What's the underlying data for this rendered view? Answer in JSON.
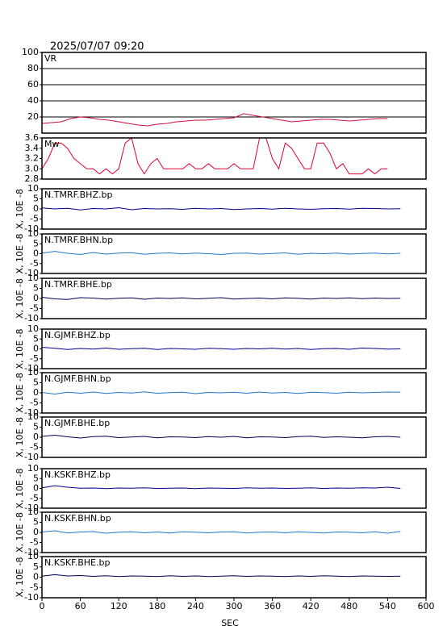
{
  "chart_data": [
    {
      "type": "line",
      "title": "2025/07/07 09:20",
      "label": "VR",
      "color": "#d0103a",
      "grid": true,
      "xlim": [
        0,
        600
      ],
      "ylim": [
        0,
        100
      ],
      "yticks": [
        20,
        40,
        60,
        80,
        100
      ],
      "x": [
        0,
        15,
        30,
        45,
        60,
        75,
        90,
        105,
        120,
        135,
        150,
        165,
        180,
        195,
        210,
        225,
        240,
        255,
        270,
        285,
        300,
        315,
        330,
        345,
        360,
        375,
        390,
        405,
        420,
        435,
        450,
        465,
        480,
        495,
        510,
        525,
        540
      ],
      "values": [
        12,
        13,
        14,
        18,
        20,
        19,
        17,
        16,
        14,
        12,
        10,
        9,
        11,
        12,
        14,
        15,
        16,
        16,
        17,
        18,
        19,
        24,
        22,
        20,
        18,
        16,
        14,
        15,
        16,
        17,
        17,
        16,
        15,
        16,
        17,
        18,
        18
      ]
    },
    {
      "type": "line",
      "label": "Mw",
      "color": "#e0002f",
      "xlim": [
        0,
        600
      ],
      "ylim": [
        2.8,
        3.6
      ],
      "yticks": [
        {
          "value": 2.8,
          "label": "2.8"
        },
        {
          "value": 3.0,
          "label": "3.0"
        },
        {
          "value": 3.2,
          "label": "3.2"
        },
        {
          "value": 3.4,
          "label": "3.4"
        },
        {
          "value": 3.6,
          "label": "3.6"
        }
      ],
      "x": [
        0,
        10,
        20,
        30,
        40,
        50,
        60,
        70,
        80,
        90,
        100,
        110,
        120,
        130,
        140,
        150,
        160,
        170,
        180,
        190,
        200,
        210,
        220,
        230,
        240,
        250,
        260,
        270,
        280,
        290,
        300,
        310,
        320,
        330,
        340,
        350,
        360,
        370,
        380,
        390,
        400,
        410,
        420,
        430,
        440,
        450,
        460,
        470,
        480,
        490,
        500,
        510,
        520,
        530,
        540
      ],
      "values": [
        3.0,
        3.2,
        3.5,
        3.5,
        3.4,
        3.2,
        3.1,
        3.0,
        3.0,
        2.9,
        3.0,
        2.9,
        3.0,
        3.5,
        3.6,
        3.1,
        2.9,
        3.1,
        3.2,
        3.0,
        3.0,
        3.0,
        3.0,
        3.1,
        3.0,
        3.0,
        3.1,
        3.0,
        3.0,
        3.0,
        3.1,
        3.0,
        3.0,
        3.0,
        3.6,
        3.6,
        3.2,
        3.0,
        3.5,
        3.4,
        3.2,
        3.0,
        3.0,
        3.5,
        3.5,
        3.3,
        3.0,
        3.1,
        2.9,
        2.9,
        2.9,
        3.0,
        2.9,
        3.0,
        3.0
      ]
    },
    {
      "type": "line",
      "label": "N.TMRF.BHZ.bp",
      "ylabel": "X, 10E -8",
      "color": "#00008b",
      "xlim": [
        0,
        600
      ],
      "ylim": [
        -10,
        10
      ],
      "yticks": [
        -10,
        -5,
        0,
        5,
        10
      ],
      "x": [
        0,
        20,
        40,
        60,
        80,
        100,
        120,
        140,
        160,
        180,
        200,
        220,
        240,
        260,
        280,
        300,
        320,
        340,
        360,
        380,
        400,
        420,
        440,
        460,
        480,
        500,
        520,
        540,
        560
      ],
      "values": [
        0.5,
        0,
        0.3,
        -0.5,
        0.2,
        0,
        0.6,
        -0.4,
        0.2,
        0,
        0.1,
        -0.2,
        0.3,
        0,
        0.2,
        -0.3,
        0,
        0.2,
        -0.1,
        0.3,
        0,
        -0.2,
        0.1,
        0.2,
        -0.1,
        0.3,
        0.2,
        0,
        0.1
      ]
    },
    {
      "type": "line",
      "label": "N.TMRF.BHN.bp",
      "ylabel": "X, 10E -8",
      "color": "#1e78c8",
      "xlim": [
        0,
        600
      ],
      "ylim": [
        -10,
        10
      ],
      "yticks": [
        -10,
        -5,
        0,
        5,
        10
      ],
      "x": [
        0,
        20,
        40,
        60,
        80,
        100,
        120,
        140,
        160,
        180,
        200,
        220,
        240,
        260,
        280,
        300,
        320,
        340,
        360,
        380,
        400,
        420,
        440,
        460,
        480,
        500,
        520,
        540,
        560
      ],
      "values": [
        0.3,
        1.2,
        0.2,
        -0.4,
        0.6,
        -0.2,
        0.3,
        0.5,
        -0.3,
        0.2,
        0.4,
        -0.1,
        0.3,
        0,
        -0.4,
        0.2,
        0.3,
        -0.2,
        0.1,
        0.4,
        -0.3,
        0.2,
        0,
        0.3,
        -0.2,
        0.1,
        0.3,
        -0.1,
        0.2
      ]
    },
    {
      "type": "line",
      "label": "N.TMRF.BHE.bp",
      "ylabel": "X, 10E -8",
      "color": "#000050",
      "xlim": [
        0,
        600
      ],
      "ylim": [
        -10,
        10
      ],
      "yticks": [
        -10,
        -5,
        0,
        5,
        10
      ],
      "x": [
        0,
        20,
        40,
        60,
        80,
        100,
        120,
        140,
        160,
        180,
        200,
        220,
        240,
        260,
        280,
        300,
        320,
        340,
        360,
        380,
        400,
        420,
        440,
        460,
        480,
        500,
        520,
        540,
        560
      ],
      "values": [
        0.6,
        -0.2,
        -0.5,
        0.4,
        0.2,
        -0.3,
        0.1,
        0.3,
        -0.4,
        0.2,
        0,
        0.3,
        -0.2,
        0.1,
        0.4,
        -0.3,
        0,
        0.2,
        -0.2,
        0.3,
        0.1,
        -0.3,
        0.2,
        0,
        0.3,
        -0.1,
        0.2,
        0,
        0.1
      ]
    },
    {
      "type": "line",
      "label": "N.GJMF.BHZ.bp",
      "ylabel": "X, 10E -8",
      "color": "#00008b",
      "xlim": [
        0,
        600
      ],
      "ylim": [
        -10,
        10
      ],
      "yticks": [
        -10,
        -5,
        0,
        5,
        10
      ],
      "x": [
        0,
        20,
        40,
        60,
        80,
        100,
        120,
        140,
        160,
        180,
        200,
        220,
        240,
        260,
        280,
        300,
        320,
        340,
        360,
        380,
        400,
        420,
        440,
        460,
        480,
        500,
        520,
        540,
        560
      ],
      "values": [
        0.8,
        0.3,
        -0.3,
        0.2,
        -0.1,
        0.4,
        -0.2,
        0.1,
        0.3,
        -0.3,
        0.2,
        0,
        -0.2,
        0.3,
        0.1,
        -0.2,
        0.2,
        0,
        0.3,
        -0.1,
        0.2,
        -0.3,
        0.1,
        0.2,
        -0.2,
        0.4,
        0.2,
        -0.1,
        0
      ]
    },
    {
      "type": "line",
      "label": "N.GJMF.BHN.bp",
      "ylabel": "X, 10E -8",
      "color": "#1e78c8",
      "xlim": [
        0,
        600
      ],
      "ylim": [
        -10,
        10
      ],
      "yticks": [
        -10,
        -5,
        0,
        5,
        10
      ],
      "x": [
        0,
        20,
        40,
        60,
        80,
        100,
        120,
        140,
        160,
        180,
        200,
        220,
        240,
        260,
        280,
        300,
        320,
        340,
        360,
        380,
        400,
        420,
        440,
        460,
        480,
        500,
        520,
        540,
        560
      ],
      "values": [
        0.2,
        -0.6,
        0.3,
        -0.2,
        0.4,
        -0.3,
        0.2,
        -0.1,
        0.5,
        -0.2,
        0.1,
        0.3,
        -0.4,
        0.2,
        0,
        0.3,
        -0.2,
        0.4,
        -0.1,
        0.2,
        -0.3,
        0.3,
        0.1,
        -0.2,
        0.3,
        0,
        0.2,
        0.4,
        0.3
      ]
    },
    {
      "type": "line",
      "label": "N.GJMF.BHE.bp",
      "ylabel": "X, 10E -8",
      "color": "#000050",
      "xlim": [
        0,
        600
      ],
      "ylim": [
        -10,
        10
      ],
      "yticks": [
        -10,
        -5,
        0,
        5,
        10
      ],
      "x": [
        0,
        20,
        40,
        60,
        80,
        100,
        120,
        140,
        160,
        180,
        200,
        220,
        240,
        260,
        280,
        300,
        320,
        340,
        360,
        380,
        400,
        420,
        440,
        460,
        480,
        500,
        520,
        540,
        560
      ],
      "values": [
        0.4,
        1.0,
        0.2,
        -0.4,
        0.3,
        0.5,
        -0.2,
        0.1,
        0.4,
        -0.3,
        0.2,
        0.1,
        -0.2,
        0.3,
        0,
        0.4,
        -0.3,
        0.2,
        0.1,
        -0.2,
        0.3,
        0.5,
        -0.1,
        0.2,
        0,
        -0.3,
        0.2,
        0.4,
        0
      ]
    },
    {
      "type": "line",
      "label": "N.KSKF.BHZ.bp",
      "ylabel": "X, 10E -8",
      "color": "#00008b",
      "xlim": [
        0,
        600
      ],
      "ylim": [
        -10,
        10
      ],
      "yticks": [
        -10,
        -5,
        0,
        5,
        10
      ],
      "x": [
        0,
        20,
        40,
        60,
        80,
        100,
        120,
        140,
        160,
        180,
        200,
        220,
        240,
        260,
        280,
        300,
        320,
        340,
        360,
        380,
        400,
        420,
        440,
        460,
        480,
        500,
        520,
        540,
        560
      ],
      "values": [
        0.3,
        1.4,
        0.6,
        0.1,
        0.2,
        -0.1,
        0.2,
        0.1,
        0.3,
        0,
        0.1,
        0.2,
        -0.1,
        0.2,
        0.1,
        0,
        0.3,
        0.1,
        0.2,
        0,
        0.1,
        0.3,
        0,
        0.2,
        0.1,
        0.3,
        0.2,
        0.6,
        0
      ]
    },
    {
      "type": "line",
      "label": "N.KSKF.BHN.bp",
      "ylabel": "X, 10E -8",
      "color": "#1e78c8",
      "xlim": [
        0,
        600
      ],
      "ylim": [
        -10,
        10
      ],
      "yticks": [
        -10,
        -5,
        0,
        5,
        10
      ],
      "x": [
        0,
        20,
        40,
        60,
        80,
        100,
        120,
        140,
        160,
        180,
        200,
        220,
        240,
        260,
        280,
        300,
        320,
        340,
        360,
        380,
        400,
        420,
        440,
        460,
        480,
        500,
        520,
        540,
        560
      ],
      "values": [
        0.2,
        0.8,
        -0.3,
        0.2,
        0.4,
        -0.4,
        0.1,
        0.3,
        -0.2,
        0.2,
        -0.3,
        0.3,
        0.1,
        -0.2,
        0.2,
        0.3,
        -0.3,
        0.1,
        0.2,
        -0.2,
        0.3,
        0,
        -0.3,
        0.2,
        0.1,
        -0.2,
        0.3,
        -0.4,
        0.5
      ]
    },
    {
      "type": "line",
      "label": "N.KSKF.BHE.bp",
      "ylabel": "X, 10E -8",
      "color": "#000050",
      "xlim": [
        0,
        600
      ],
      "ylim": [
        -10,
        10
      ],
      "yticks": [
        -10,
        -5,
        0,
        5,
        10
      ],
      "xlabel": "SEC",
      "xticks": [
        0,
        60,
        120,
        180,
        240,
        300,
        360,
        420,
        480,
        540,
        600
      ],
      "x": [
        0,
        20,
        40,
        60,
        80,
        100,
        120,
        140,
        160,
        180,
        200,
        220,
        240,
        260,
        280,
        300,
        320,
        340,
        360,
        380,
        400,
        420,
        440,
        460,
        480,
        500,
        520,
        540,
        560
      ],
      "values": [
        0.5,
        1.2,
        0.6,
        0.8,
        0.4,
        0.7,
        0.3,
        0.6,
        0.5,
        0.3,
        0.7,
        0.4,
        0.6,
        0.3,
        0.5,
        0.7,
        0.4,
        0.6,
        0.5,
        0.3,
        0.6,
        0.4,
        0.7,
        0.5,
        0.3,
        0.6,
        0.5,
        0.4,
        0.5
      ]
    }
  ]
}
